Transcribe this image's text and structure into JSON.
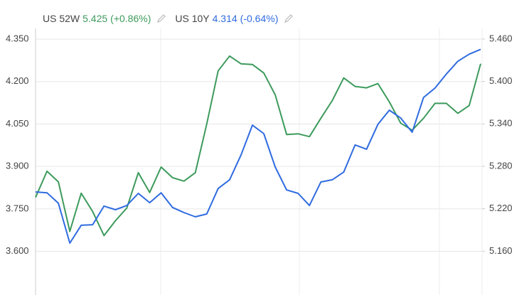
{
  "chart_data": {
    "type": "line",
    "categories": [
      null,
      null,
      null,
      null,
      null,
      null,
      null,
      null,
      null,
      null,
      null,
      null,
      null,
      null,
      null,
      null,
      null,
      null,
      null,
      null,
      null,
      null,
      null,
      null,
      null,
      null,
      null,
      null,
      null,
      null,
      null,
      null,
      null,
      null,
      null,
      null,
      null,
      null,
      null,
      null
    ],
    "series": [
      {
        "name": "US 52W",
        "last_label": "5.425",
        "change": "(+0.86%)",
        "color": "#3d9a5c",
        "axis": "y2",
        "values": [
          5.236,
          5.273,
          5.258,
          5.188,
          5.242,
          5.216,
          5.182,
          5.203,
          5.221,
          5.271,
          5.243,
          5.279,
          5.264,
          5.259,
          5.271,
          5.34,
          5.415,
          5.436,
          5.425,
          5.424,
          5.412,
          5.381,
          5.325,
          5.326,
          5.322,
          5.348,
          5.373,
          5.405,
          5.393,
          5.391,
          5.397,
          5.371,
          5.341,
          5.331,
          5.348,
          5.369,
          5.369,
          5.355,
          5.366,
          5.425
        ]
      },
      {
        "name": "US 10Y",
        "last_label": "4.314",
        "change": "(-0.64%)",
        "color": "#2f6be0",
        "values": [
          3.81,
          3.807,
          3.77,
          3.629,
          3.692,
          3.694,
          3.76,
          3.747,
          3.762,
          3.805,
          3.772,
          3.807,
          3.755,
          3.737,
          3.722,
          3.732,
          3.822,
          3.853,
          3.94,
          4.046,
          4.016,
          3.898,
          3.817,
          3.805,
          3.762,
          3.845,
          3.853,
          3.88,
          3.976,
          3.961,
          4.049,
          4.099,
          4.071,
          4.021,
          4.144,
          4.177,
          4.227,
          4.272,
          4.297,
          4.314
        ]
      }
    ],
    "ylim": [
      3.453,
      4.388
    ],
    "yticks": [
      {
        "value": 3.6,
        "label": "3.600"
      },
      {
        "value": 3.75,
        "label": "3.750"
      },
      {
        "value": 3.9,
        "label": "3.900"
      },
      {
        "value": 4.05,
        "label": "4.050"
      },
      {
        "value": 4.2,
        "label": "4.200"
      },
      {
        "value": 4.35,
        "label": "4.350"
      }
    ],
    "y2lim": [
      5.101,
      5.475
    ],
    "y2ticks": [
      {
        "value": 5.16,
        "label": "5.160"
      },
      {
        "value": 5.22,
        "label": "5.220"
      },
      {
        "value": 5.28,
        "label": "5.280"
      },
      {
        "value": 5.34,
        "label": "5.340"
      },
      {
        "value": 5.4,
        "label": "5.400"
      },
      {
        "value": 5.46,
        "label": "5.460"
      }
    ],
    "grid": true
  }
}
